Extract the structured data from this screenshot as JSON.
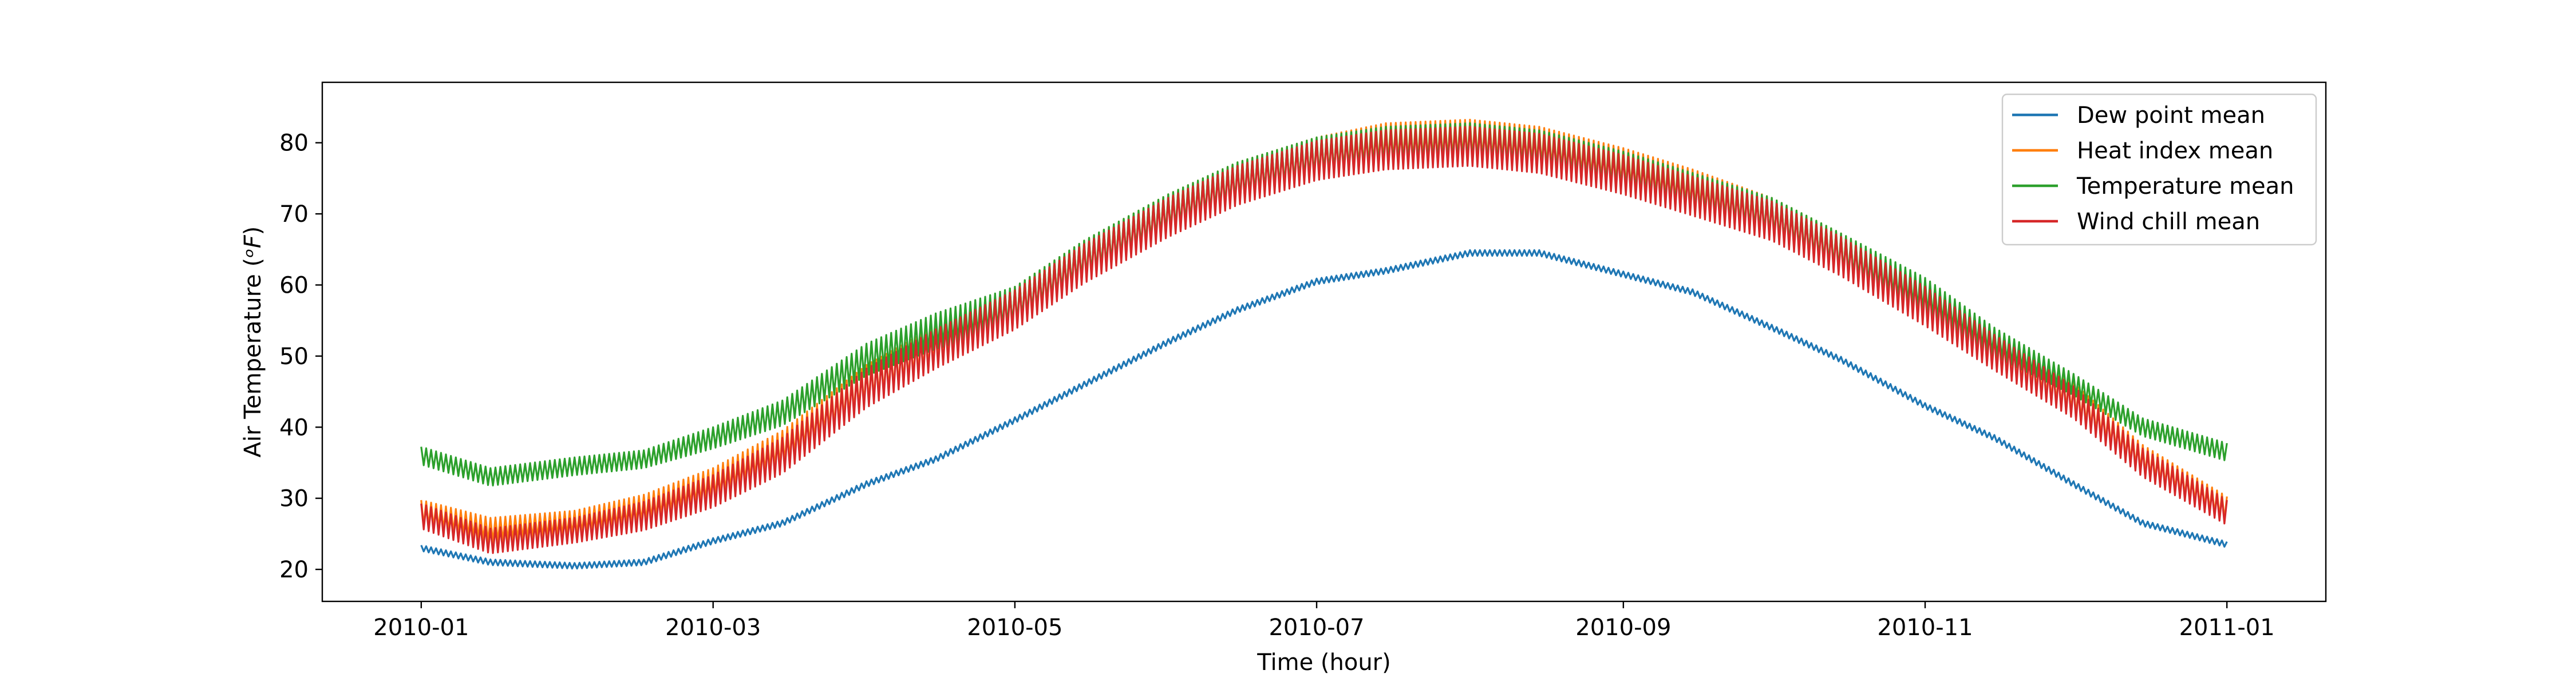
{
  "chart_data": {
    "type": "line",
    "title": "",
    "xlabel": "Time (hour)",
    "ylabel": "Air Temperature (ᵒF)",
    "ylabel_main": "Air Temperature (",
    "ylabel_unit": "ᵒF",
    "ylabel_close": ")",
    "xlim": [
      "2009-12-12",
      "2011-01-21"
    ],
    "ylim": [
      15.5,
      88.5
    ],
    "x_ticks": [
      "2010-01",
      "2010-03",
      "2010-05",
      "2010-07",
      "2010-09",
      "2010-11",
      "2011-01"
    ],
    "y_ticks": [
      20,
      30,
      40,
      50,
      60,
      70,
      80
    ],
    "grid": false,
    "legend_position": "top-right",
    "x": [
      "2010-01-01",
      "2010-01-15",
      "2010-02-01",
      "2010-02-15",
      "2010-03-01",
      "2010-03-15",
      "2010-04-01",
      "2010-04-15",
      "2010-05-01",
      "2010-05-15",
      "2010-06-01",
      "2010-06-15",
      "2010-07-01",
      "2010-07-15",
      "2010-08-01",
      "2010-08-15",
      "2010-09-01",
      "2010-09-15",
      "2010-10-01",
      "2010-10-15",
      "2010-11-01",
      "2010-11-15",
      "2010-12-01",
      "2010-12-15",
      "2011-01-01"
    ],
    "series": [
      {
        "name": "Dew point mean",
        "color": "#1f77b4",
        "values": [
          23.0,
          21.0,
          20.5,
          21.0,
          24.0,
          26.5,
          32.0,
          35.5,
          41.0,
          46.0,
          52.0,
          56.5,
          60.5,
          62.0,
          64.5,
          64.5,
          61.5,
          59.0,
          54.0,
          49.5,
          43.0,
          38.5,
          32.0,
          26.5,
          23.5
        ],
        "daily_range": [
          0.8,
          0.8,
          0.8,
          0.8,
          0.8,
          0.8,
          0.8,
          0.8,
          0.8,
          0.8,
          0.8,
          0.8,
          0.8,
          0.8,
          0.8,
          0.8,
          0.8,
          0.8,
          0.8,
          0.8,
          0.8,
          0.8,
          0.8,
          0.8,
          0.8
        ]
      },
      {
        "name": "Heat index mean",
        "color": "#ff7f0e",
        "values": [
          28.0,
          25.5,
          26.5,
          28.5,
          32.0,
          37.0,
          46.0,
          51.5,
          57.0,
          63.5,
          70.0,
          74.5,
          78.0,
          80.0,
          80.5,
          79.5,
          76.5,
          73.5,
          69.5,
          64.5,
          57.5,
          51.0,
          44.0,
          35.5,
          28.5
        ],
        "daily_range": [
          3.5,
          3.5,
          3.5,
          4.0,
          4.5,
          5.0,
          5.5,
          5.5,
          5.5,
          5.5,
          5.5,
          5.5,
          5.5,
          5.5,
          5.5,
          5.5,
          5.5,
          5.5,
          5.5,
          5.5,
          5.5,
          5.0,
          4.5,
          4.0,
          3.5
        ]
      },
      {
        "name": "Temperature mean",
        "color": "#2ca02c",
        "values": [
          36.0,
          33.0,
          34.5,
          35.5,
          38.5,
          42.0,
          49.5,
          53.5,
          57.0,
          63.5,
          70.0,
          74.5,
          78.0,
          79.5,
          80.0,
          79.0,
          76.0,
          73.0,
          69.5,
          64.5,
          58.5,
          52.0,
          46.0,
          40.0,
          36.5
        ],
        "daily_range": [
          2.5,
          2.5,
          2.5,
          2.5,
          3.0,
          3.5,
          4.5,
          5.0,
          5.5,
          5.5,
          5.5,
          5.5,
          5.5,
          5.5,
          5.5,
          5.5,
          5.5,
          5.5,
          5.5,
          5.5,
          5.0,
          4.0,
          3.0,
          2.5,
          2.5
        ]
      },
      {
        "name": "Wind chill mean",
        "color": "#d62728",
        "values": [
          27.5,
          24.0,
          25.5,
          27.5,
          31.0,
          36.0,
          45.5,
          51.0,
          56.5,
          63.0,
          69.5,
          74.0,
          77.5,
          79.0,
          79.5,
          78.5,
          75.5,
          72.5,
          69.0,
          64.0,
          57.0,
          50.5,
          43.5,
          35.0,
          28.0
        ],
        "daily_range": [
          3.5,
          3.5,
          3.5,
          4.0,
          4.5,
          5.0,
          5.5,
          5.5,
          5.5,
          5.5,
          5.5,
          5.5,
          5.5,
          5.5,
          5.5,
          5.5,
          5.5,
          5.5,
          5.5,
          5.5,
          5.5,
          5.0,
          4.5,
          4.0,
          3.5
        ]
      }
    ]
  }
}
